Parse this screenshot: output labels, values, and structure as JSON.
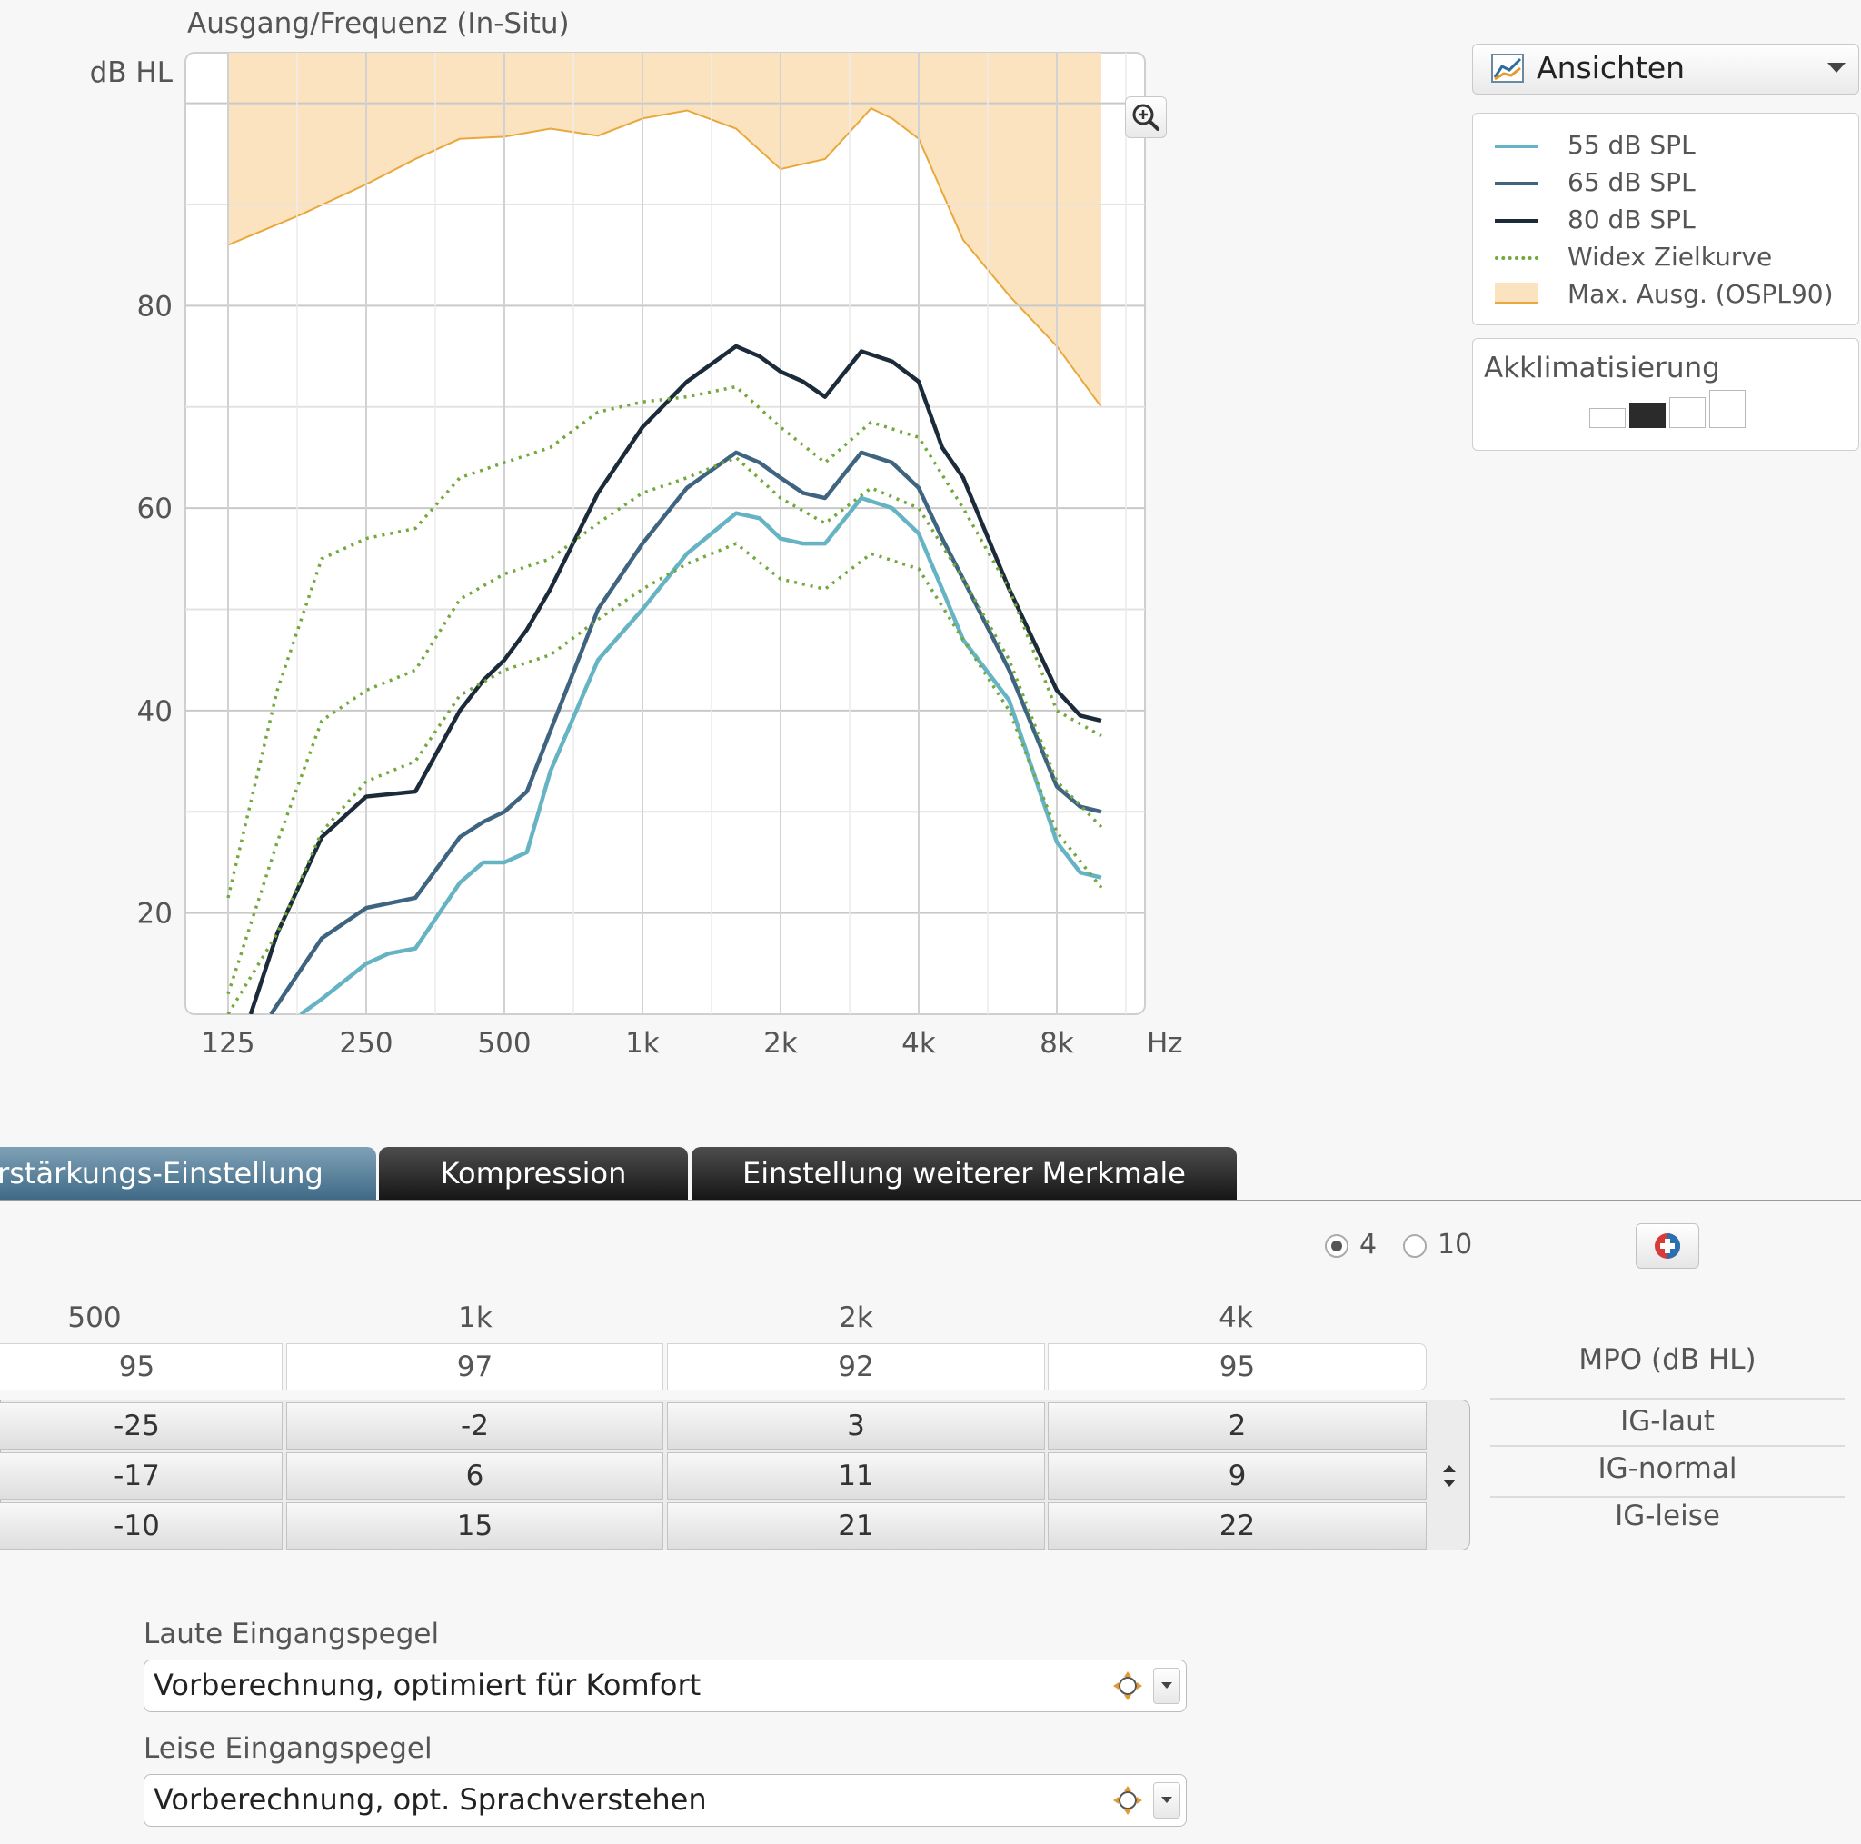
{
  "chart": {
    "title": "Ausgang/Frequenz (In-Situ)",
    "y_unit": "dB HL",
    "x_unit": "Hz",
    "zoom_icon": "zoom-in-icon"
  },
  "chart_data": {
    "type": "line",
    "x_scale": "log2",
    "x_ticks": [
      125,
      250,
      500,
      1000,
      2000,
      4000,
      8000
    ],
    "x_tick_labels": [
      "125",
      "250",
      "500",
      "1k",
      "2k",
      "4k",
      "8k"
    ],
    "y_ticks": [
      20,
      40,
      60,
      80
    ],
    "y_tick_labels": [
      "20",
      "40",
      "60",
      "80"
    ],
    "ylim": [
      10,
      105
    ],
    "grid": true,
    "legend_placement": "right panel",
    "colors": {
      "spl55": "#66b3c4",
      "spl65": "#3f6480",
      "spl80": "#1b2b3a",
      "target": "#72a83c",
      "ospl_fill": "#fbe3c0",
      "ospl_line": "#e8a83c"
    },
    "area": {
      "name": "Max. Ausg. (OSPL90)",
      "x": [
        125,
        180,
        250,
        320,
        400,
        500,
        630,
        800,
        1000,
        1250,
        1600,
        2000,
        2500,
        3150,
        3500,
        4000,
        5000,
        6300,
        8000,
        10000
      ],
      "y": [
        86,
        89,
        92,
        94.5,
        96.5,
        96.7,
        97.5,
        96.8,
        98.5,
        99.3,
        97.5,
        93.5,
        94.5,
        99.5,
        98.5,
        96.5,
        86.5,
        81,
        76,
        70
      ]
    },
    "series": [
      {
        "name": "55 dB SPL",
        "color_key": "spl55",
        "style": "solid",
        "x": [
          180,
          200,
          250,
          280,
          320,
          400,
          450,
          500,
          560,
          630,
          800,
          1000,
          1250,
          1600,
          1800,
          2000,
          2240,
          2500,
          3000,
          3500,
          4000,
          4500,
          5000,
          6300,
          8000,
          9000,
          10000
        ],
        "y": [
          10,
          11.5,
          15,
          16,
          16.5,
          23,
          25,
          25,
          26,
          34,
          45,
          50,
          55.5,
          59.5,
          59,
          57,
          56.5,
          56.5,
          61,
          60,
          57.5,
          52,
          47,
          41,
          27,
          24,
          23.5
        ]
      },
      {
        "name": "65 dB SPL",
        "color_key": "spl65",
        "style": "solid",
        "x": [
          155,
          200,
          250,
          320,
          400,
          450,
          500,
          560,
          630,
          800,
          1000,
          1250,
          1600,
          1800,
          2000,
          2240,
          2500,
          3000,
          3500,
          4000,
          4500,
          5000,
          6300,
          8000,
          9000,
          10000
        ],
        "y": [
          10,
          17.5,
          20.5,
          21.5,
          27.5,
          29,
          30,
          32,
          38,
          50,
          56.5,
          62,
          65.5,
          64.5,
          63,
          61.5,
          61,
          65.5,
          64.5,
          62,
          57,
          53,
          44,
          32.5,
          30.5,
          30
        ]
      },
      {
        "name": "80 dB SPL",
        "color_key": "spl80",
        "style": "solid",
        "x": [
          140,
          160,
          200,
          250,
          320,
          400,
          450,
          500,
          560,
          630,
          800,
          1000,
          1250,
          1600,
          1800,
          2000,
          2240,
          2500,
          3000,
          3500,
          4000,
          4500,
          5000,
          6300,
          8000,
          9000,
          10000
        ],
        "y": [
          10,
          18,
          27.5,
          31.5,
          32,
          40,
          43,
          45,
          48,
          52,
          61.5,
          68,
          72.5,
          76,
          75,
          73.5,
          72.5,
          71,
          75.5,
          74.5,
          72.5,
          66,
          63,
          52,
          42,
          39.5,
          39
        ]
      },
      {
        "name": "Widex Zielkurve",
        "color_key": "target",
        "style": "dotted",
        "x": [
          125,
          160,
          200,
          250,
          320,
          400,
          500,
          630,
          800,
          1000,
          1250,
          1600,
          2000,
          2500,
          3150,
          4000,
          5000,
          6300,
          8000,
          10000
        ],
        "y": [
          21.5,
          42,
          55,
          57,
          58,
          63,
          64.5,
          66,
          69.5,
          70.5,
          71,
          72,
          68,
          64.5,
          68.5,
          67,
          60,
          52,
          40,
          37.5
        ]
      },
      {
        "name": "",
        "color_key": "target",
        "style": "dotted",
        "x": [
          125,
          160,
          200,
          250,
          320,
          400,
          500,
          630,
          800,
          1000,
          1250,
          1600,
          2000,
          2500,
          3150,
          4000,
          5000,
          6300,
          8000,
          10000
        ],
        "y": [
          12,
          27,
          39,
          42,
          44,
          51,
          53.5,
          55,
          58.5,
          61.5,
          63,
          65,
          61,
          58.5,
          62,
          60,
          53,
          45,
          33,
          28.5
        ]
      },
      {
        "name": "",
        "color_key": "target",
        "style": "dotted",
        "x": [
          125,
          160,
          200,
          250,
          320,
          400,
          500,
          630,
          800,
          1000,
          1250,
          1600,
          2000,
          2500,
          3150,
          4000,
          5000,
          6300,
          8000,
          10000
        ],
        "y": [
          10,
          18,
          28,
          33,
          35,
          41.5,
          44,
          45.5,
          49,
          52,
          54.5,
          56.5,
          53,
          52,
          55.5,
          54,
          47,
          40,
          28,
          22.5
        ]
      }
    ]
  },
  "views": {
    "label": "Ansichten",
    "icon": "chart-view-icon"
  },
  "legend": {
    "items": [
      {
        "label": "55 dB SPL",
        "color": "#66b3c4",
        "style": "solid"
      },
      {
        "label": "65 dB SPL",
        "color": "#3f6480",
        "style": "solid"
      },
      {
        "label": "80 dB SPL",
        "color": "#1b2b3a",
        "style": "solid"
      },
      {
        "label": "Widex Zielkurve",
        "color": "#72a83c",
        "style": "dotted"
      },
      {
        "label": "Max. Ausg. (OSPL90)",
        "color": "#fbe3c0",
        "style": "fill"
      }
    ]
  },
  "acclimatization": {
    "title": "Akklimatisierung",
    "steps": 4,
    "selected_step": 2
  },
  "tabs": [
    {
      "label": "Verstärkungs-Einstellung",
      "active": true
    },
    {
      "label": "Kompression",
      "active": false
    },
    {
      "label": "Einstellung weiterer Merkmale",
      "active": false
    }
  ],
  "channel_options": {
    "options": [
      "4",
      "10"
    ],
    "selected": "4"
  },
  "table": {
    "frequencies": [
      "500",
      "1k",
      "2k",
      "4k"
    ],
    "mpo": {
      "label": "MPO (dB HL)",
      "values": [
        "95",
        "97",
        "92",
        "95"
      ]
    },
    "rows": [
      {
        "label": "IG-laut",
        "values": [
          "-25",
          "-2",
          "3",
          "2"
        ]
      },
      {
        "label": "IG-normal",
        "values": [
          "-17",
          "6",
          "11",
          "9"
        ]
      },
      {
        "label": "IG-leise",
        "values": [
          "-10",
          "15",
          "21",
          "22"
        ]
      }
    ]
  },
  "settings": {
    "loud": {
      "label": "Laute Eingangspegel",
      "value": "Vorberechnung, optimiert für Komfort"
    },
    "soft": {
      "label": "Leise Eingangspegel",
      "value": "Vorberechnung, opt. Sprachverstehen"
    }
  }
}
